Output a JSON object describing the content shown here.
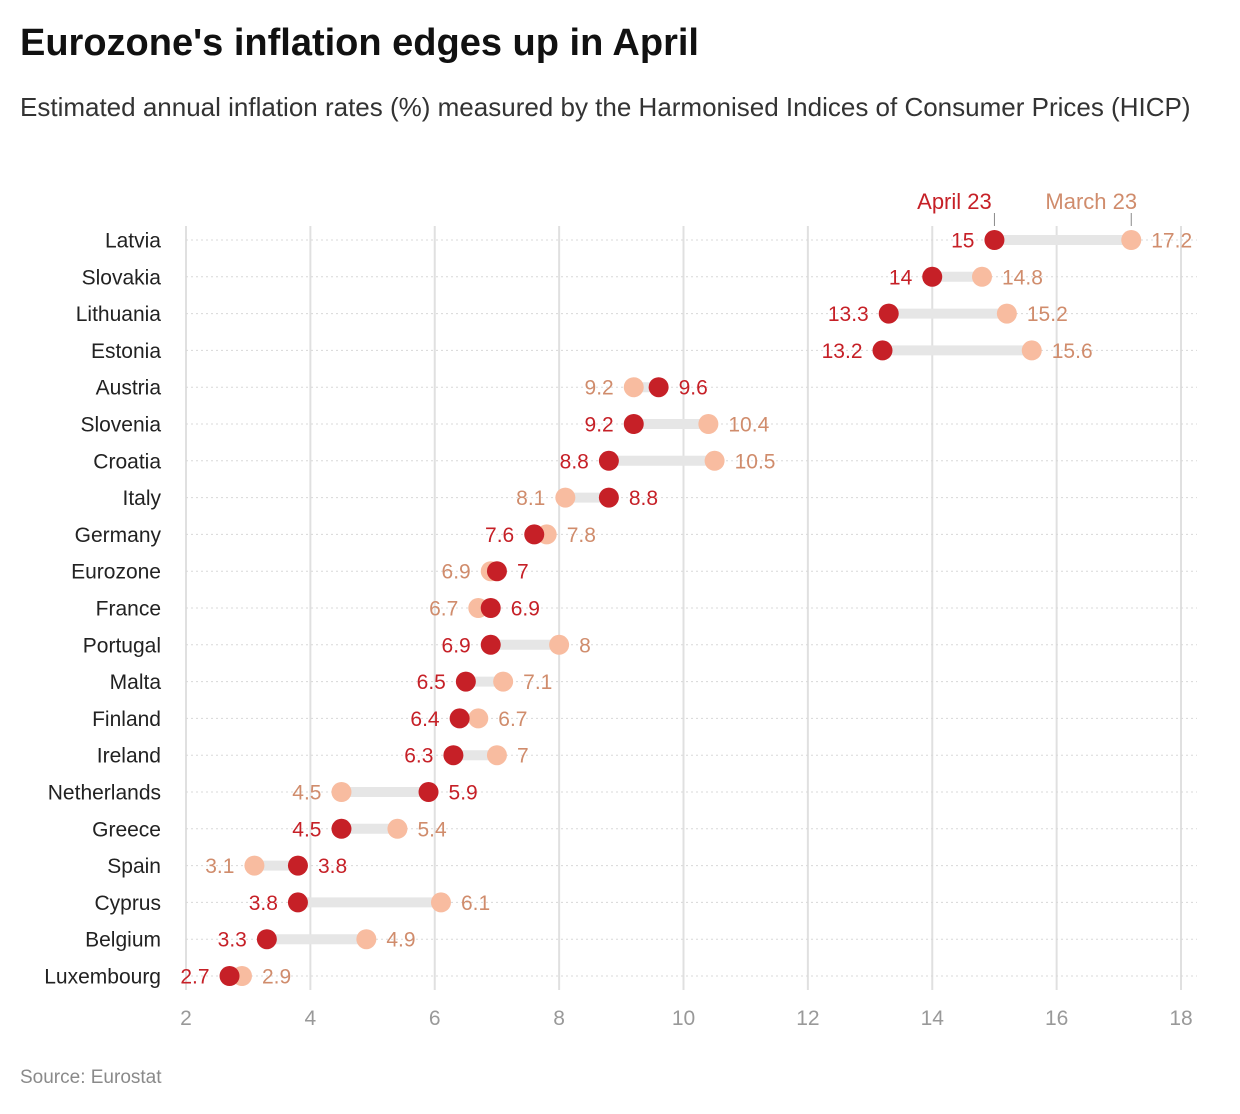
{
  "title": "Eurozone's inflation edges up in April",
  "subtitle": "Estimated annual inflation rates (%) measured by the Harmonised Indices of Consumer Prices (HICP)",
  "source": "Source: Eurostat",
  "colors": {
    "april": "#c62027",
    "march": "#f8bca0",
    "march_label": "#d08c6c",
    "connector": "#e6e6e6",
    "grid": "#e0e0e0",
    "axis_text": "#999999"
  },
  "chart_data": {
    "type": "dumbbell",
    "xlim": [
      2,
      18
    ],
    "xticks": [
      "2",
      "4",
      "6",
      "8",
      "10",
      "12",
      "14",
      "16",
      "18"
    ],
    "grid": true,
    "series": [
      {
        "name": "April 23",
        "key": "april"
      },
      {
        "name": "March 23",
        "key": "march"
      }
    ],
    "rows": [
      {
        "country": "Latvia",
        "april": 15,
        "march": 17.2
      },
      {
        "country": "Slovakia",
        "april": 14,
        "march": 14.8
      },
      {
        "country": "Lithuania",
        "april": 13.3,
        "march": 15.2
      },
      {
        "country": "Estonia",
        "april": 13.2,
        "march": 15.6
      },
      {
        "country": "Austria",
        "april": 9.6,
        "march": 9.2
      },
      {
        "country": "Slovenia",
        "april": 9.2,
        "march": 10.4
      },
      {
        "country": "Croatia",
        "april": 8.8,
        "march": 10.5
      },
      {
        "country": "Italy",
        "april": 8.8,
        "march": 8.1
      },
      {
        "country": "Germany",
        "april": 7.6,
        "march": 7.8
      },
      {
        "country": "Eurozone",
        "april": 7,
        "march": 6.9
      },
      {
        "country": "France",
        "april": 6.9,
        "march": 6.7
      },
      {
        "country": "Portugal",
        "april": 6.9,
        "march": 8
      },
      {
        "country": "Malta",
        "april": 6.5,
        "march": 7.1
      },
      {
        "country": "Finland",
        "april": 6.4,
        "march": 6.7
      },
      {
        "country": "Ireland",
        "april": 6.3,
        "march": 7
      },
      {
        "country": "Netherlands",
        "april": 5.9,
        "march": 4.5
      },
      {
        "country": "Greece",
        "april": 4.5,
        "march": 5.4
      },
      {
        "country": "Spain",
        "april": 3.8,
        "march": 3.1
      },
      {
        "country": "Cyprus",
        "april": 3.8,
        "march": 6.1
      },
      {
        "country": "Belgium",
        "april": 3.3,
        "march": 4.9
      },
      {
        "country": "Luxembourg",
        "april": 2.7,
        "march": 2.9
      }
    ]
  }
}
